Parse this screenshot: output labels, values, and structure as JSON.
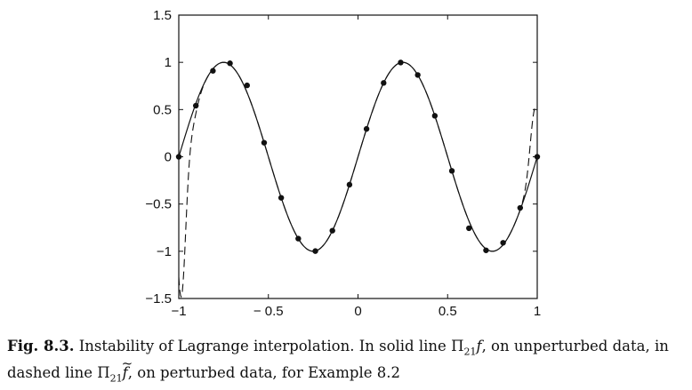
{
  "chart_data": {
    "type": "line",
    "x_range": [
      -1,
      1
    ],
    "y_range": [
      -1.5,
      1.5
    ],
    "xticks": [
      -1,
      -0.5,
      0,
      0.5,
      1
    ],
    "xtick_labels": [
      "−1",
      "− 0.5",
      "0",
      "0.5",
      "1"
    ],
    "yticks": [
      -1.5,
      -1,
      -0.5,
      0,
      0.5,
      1,
      1.5
    ],
    "ytick_labels": [
      "−1.5",
      "−1",
      "−0.5",
      "0",
      "0.5",
      "1",
      "1.5"
    ],
    "grid": false,
    "series": [
      {
        "style": "solid",
        "function": "sin(2*pi*x)",
        "color": "#111111"
      },
      {
        "style": "dashed",
        "function": "sin(2*pi*x) perturbed near endpoints",
        "color": "#111111"
      },
      {
        "style": "markers",
        "x": [
          -1,
          -0.9048,
          -0.8095,
          -0.7143,
          -0.619,
          -0.5238,
          -0.4286,
          -0.3333,
          -0.2381,
          -0.1429,
          -0.0476,
          0.0476,
          0.1429,
          0.2381,
          0.3333,
          0.4286,
          0.5238,
          0.619,
          0.7143,
          0.8095,
          0.9048,
          1
        ],
        "y": [
          0,
          0.541,
          0.91,
          0.99,
          0.756,
          0.149,
          -0.434,
          -0.866,
          -0.998,
          -0.782,
          -0.295,
          0.295,
          0.782,
          0.998,
          0.866,
          0.434,
          -0.149,
          -0.756,
          -0.99,
          -0.91,
          -0.541,
          0
        ],
        "color": "#111111"
      }
    ]
  },
  "caption": {
    "label": "Fig. 8.3.",
    "text1": "Instability of Lagrange interpolation. In solid line ",
    "pi1": "Π",
    "sub1": "21",
    "f1": "f",
    "text2": ", on unperturbed data, in dashed line ",
    "pi2": "Π",
    "sub2": "21",
    "f2": "f",
    "text3": ", on perturbed data, for Example 8.2"
  }
}
